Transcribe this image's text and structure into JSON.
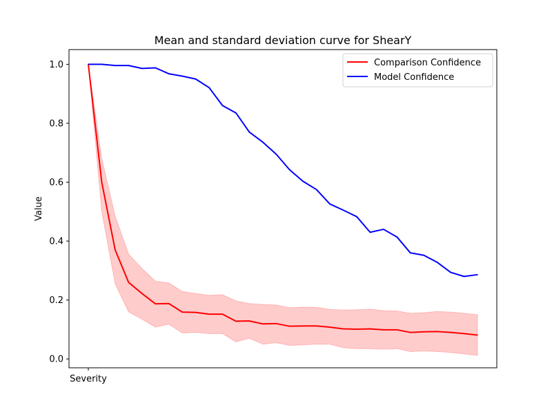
{
  "chart_data": {
    "type": "line",
    "title": "Mean and standard deviation curve for ShearY",
    "xlabel": "Severity",
    "ylabel": "Value",
    "x_tick_labels": [
      "Severity"
    ],
    "y_ticks": [
      "0.0",
      "0.2",
      "0.4",
      "0.6",
      "0.8",
      "1.0"
    ],
    "ylim": [
      -0.03,
      1.05
    ],
    "legend_position": "upper right",
    "grid": false,
    "series": [
      {
        "name": "Comparison Confidence",
        "color": "#ff0000",
        "values": [
          1.0,
          0.6,
          0.37,
          0.26,
          0.222,
          0.187,
          0.188,
          0.159,
          0.158,
          0.152,
          0.152,
          0.128,
          0.129,
          0.119,
          0.12,
          0.111,
          0.112,
          0.112,
          0.108,
          0.102,
          0.101,
          0.102,
          0.099,
          0.099,
          0.09,
          0.092,
          0.093,
          0.09,
          0.086,
          0.081
        ],
        "std_lower": [
          1.0,
          0.5,
          0.255,
          0.16,
          0.135,
          0.108,
          0.118,
          0.088,
          0.09,
          0.086,
          0.086,
          0.058,
          0.07,
          0.05,
          0.055,
          0.046,
          0.048,
          0.05,
          0.05,
          0.038,
          0.035,
          0.035,
          0.033,
          0.035,
          0.025,
          0.027,
          0.025,
          0.022,
          0.017,
          0.012
        ],
        "std_upper": [
          1.0,
          0.68,
          0.485,
          0.356,
          0.307,
          0.264,
          0.258,
          0.229,
          0.222,
          0.216,
          0.218,
          0.197,
          0.188,
          0.185,
          0.183,
          0.174,
          0.176,
          0.175,
          0.168,
          0.166,
          0.167,
          0.169,
          0.164,
          0.163,
          0.155,
          0.157,
          0.161,
          0.159,
          0.155,
          0.15
        ]
      },
      {
        "name": "Model Confidence",
        "color": "#0000ff",
        "values": [
          1.0,
          1.0,
          0.996,
          0.996,
          0.986,
          0.988,
          0.968,
          0.96,
          0.95,
          0.921,
          0.86,
          0.835,
          0.77,
          0.736,
          0.695,
          0.642,
          0.603,
          0.575,
          0.526,
          0.505,
          0.483,
          0.43,
          0.44,
          0.414,
          0.36,
          0.352,
          0.328,
          0.294,
          0.28,
          0.286
        ]
      }
    ]
  }
}
